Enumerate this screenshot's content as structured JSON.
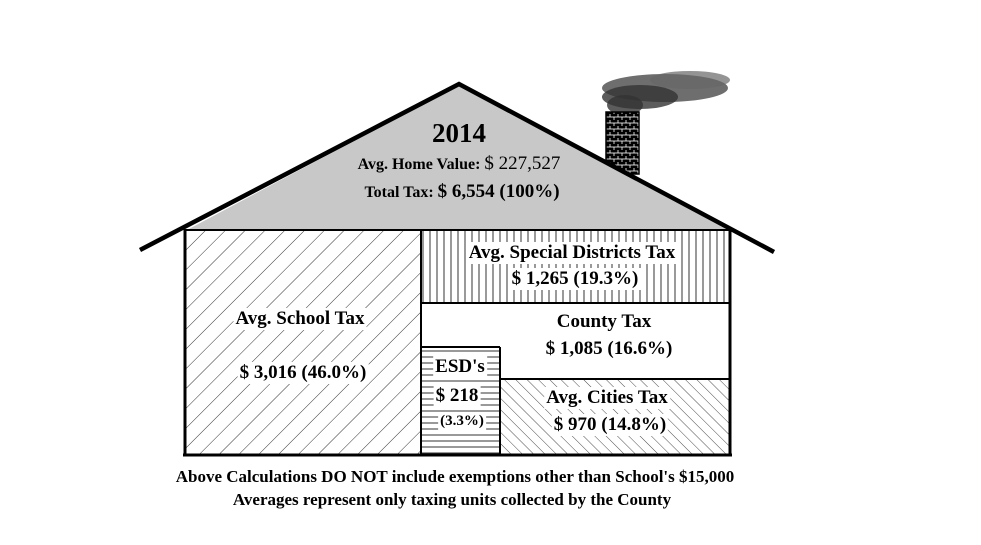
{
  "roof": {
    "year": "2014",
    "home_value_label": "Avg. Home Value:",
    "home_value": "$ 227,527",
    "total_tax_label": "Total Tax:",
    "total_tax": "$ 6,554 (100%)"
  },
  "sections": {
    "school": {
      "label": "Avg. School Tax",
      "amount": "$ 3,016 (46.0%)"
    },
    "special_districts": {
      "label": "Avg. Special Districts Tax",
      "amount": "$ 1,265 (19.3%)"
    },
    "county": {
      "label": "County Tax",
      "amount": "$ 1,085 (16.6%)"
    },
    "esd": {
      "label": "ESD's",
      "amount": "$ 218",
      "percent": "(3.3%)"
    },
    "cities": {
      "label": "Avg. Cities Tax",
      "amount": "$ 970 (14.8%)"
    }
  },
  "footer": {
    "line1": "Above Calculations DO NOT include exemptions other than School's $15,000",
    "line2": "Averages represent only taxing units collected by the County"
  },
  "colors": {
    "roof_fill": "#c8c8c8",
    "outline": "#000000",
    "smoke": "#444444"
  }
}
